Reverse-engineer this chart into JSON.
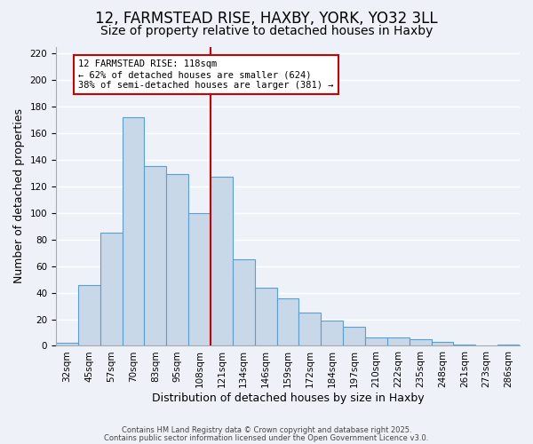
{
  "title": "12, FARMSTEAD RISE, HAXBY, YORK, YO32 3LL",
  "subtitle": "Size of property relative to detached houses in Haxby",
  "xlabel": "Distribution of detached houses by size in Haxby",
  "ylabel": "Number of detached properties",
  "categories": [
    "32sqm",
    "45sqm",
    "57sqm",
    "70sqm",
    "83sqm",
    "95sqm",
    "108sqm",
    "121sqm",
    "134sqm",
    "146sqm",
    "159sqm",
    "172sqm",
    "184sqm",
    "197sqm",
    "210sqm",
    "222sqm",
    "235sqm",
    "248sqm",
    "261sqm",
    "273sqm",
    "286sqm"
  ],
  "values": [
    2,
    46,
    85,
    172,
    135,
    129,
    100,
    127,
    65,
    44,
    36,
    25,
    19,
    14,
    6,
    6,
    5,
    3,
    1,
    0,
    1
  ],
  "bar_color": "#c8d8e8",
  "bar_edge_color": "#5a9fd4",
  "vline_color": "#cc0000",
  "annotation_text": "12 FARMSTEAD RISE: 118sqm\n← 62% of detached houses are smaller (624)\n38% of semi-detached houses are larger (381) →",
  "annotation_box_color": "#ffffff",
  "annotation_box_edge": "#cc0000",
  "footer1": "Contains HM Land Registry data © Crown copyright and database right 2025.",
  "footer2": "Contains public sector information licensed under the Open Government Licence v3.0.",
  "ylim": [
    0,
    225
  ],
  "yticks": [
    0,
    20,
    40,
    60,
    80,
    100,
    120,
    140,
    160,
    180,
    200,
    220
  ],
  "background_color": "#eef2f8",
  "grid_color": "#ffffff",
  "title_fontsize": 12,
  "subtitle_fontsize": 10,
  "axis_fontsize": 9,
  "tick_fontsize": 7.5
}
